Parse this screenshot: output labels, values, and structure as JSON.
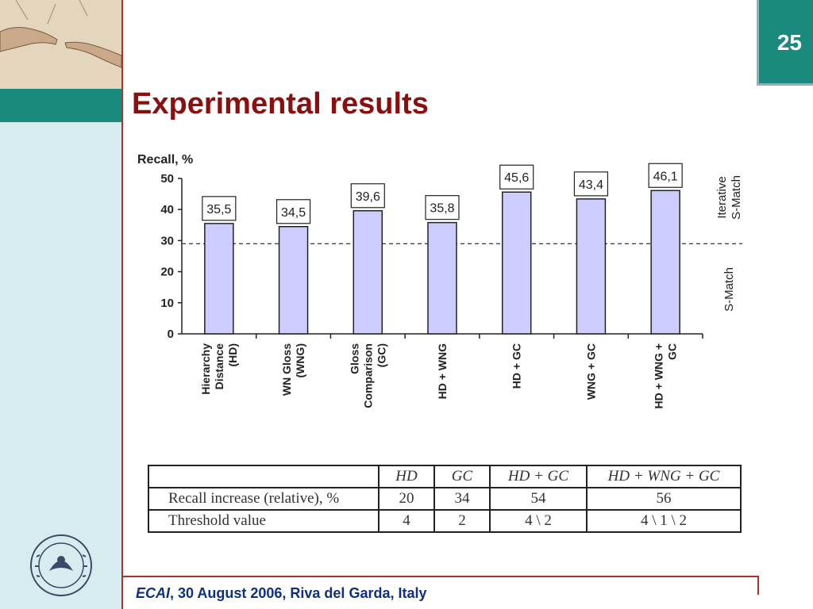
{
  "slide": {
    "number": "25",
    "title": "Experimental results",
    "footer": {
      "venue": "ECAI",
      "rest": ", 30 August 2006, Riva del Garda, Italy"
    }
  },
  "chart_data": {
    "type": "bar",
    "ylabel": "Recall, %",
    "ylim": [
      0,
      50
    ],
    "yticks": [
      "50",
      "40",
      "30",
      "20",
      "10",
      "0"
    ],
    "categories": [
      [
        "Hierarchy",
        "Distance",
        "(HD)"
      ],
      [
        "WN Gloss",
        "(WNG)"
      ],
      [
        "Gloss",
        "Comparison",
        "(GC)"
      ],
      [
        "HD + WNG"
      ],
      [
        "HD + GC"
      ],
      [
        "WNG + GC"
      ],
      [
        "HD + WNG +",
        "GC"
      ]
    ],
    "values": [
      35.5,
      34.5,
      39.6,
      35.8,
      45.6,
      43.4,
      46.1
    ],
    "value_labels": [
      "35,5",
      "34,5",
      "39,6",
      "35,8",
      "45,6",
      "43,4",
      "46,1"
    ],
    "threshold": 29,
    "side_labels": {
      "upper": [
        "Iterative",
        "S-Match"
      ],
      "lower": [
        "S-Match"
      ]
    },
    "bar_color": "#ccccff"
  },
  "table": {
    "headers": [
      "",
      "HD",
      "GC",
      "HD + GC",
      "HD + WNG + GC"
    ],
    "rows": [
      [
        "Recall increase (relative), %",
        "20",
        "34",
        "54",
        "56"
      ],
      [
        "Threshold value",
        "4",
        "2",
        "4 \\ 2",
        "4 \\ 1 \\ 2"
      ]
    ]
  }
}
